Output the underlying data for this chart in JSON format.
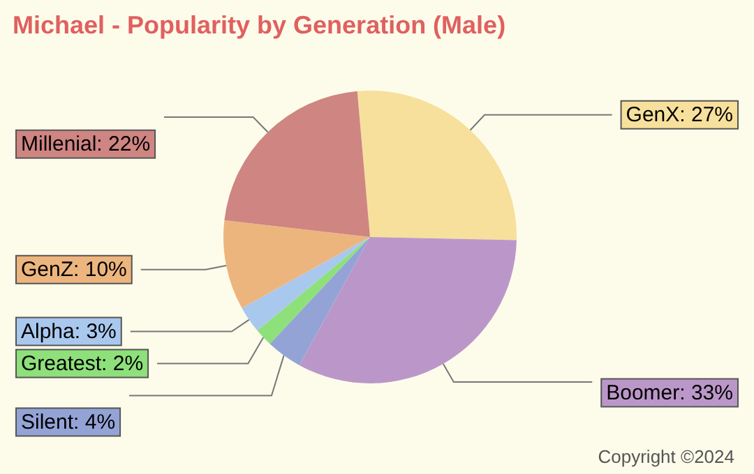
{
  "chart_data": {
    "type": "pie",
    "title": "Michael - Popularity by Generation (Male)",
    "categories": [
      "GenX",
      "Boomer",
      "Silent",
      "Greatest",
      "Alpha",
      "GenZ",
      "Millenial"
    ],
    "values": [
      27,
      33,
      4,
      2,
      3,
      10,
      22
    ],
    "value_labels": [
      "27%",
      "33%",
      "4%",
      "2%",
      "3%",
      "10%",
      "22%"
    ],
    "colors": [
      "#f7e09c",
      "#bb97c9",
      "#94a3d6",
      "#8ee07a",
      "#a9c8ee",
      "#edb57e",
      "#cf8582"
    ],
    "legend": false,
    "annotations": [
      "Copyright ©2024"
    ]
  }
}
